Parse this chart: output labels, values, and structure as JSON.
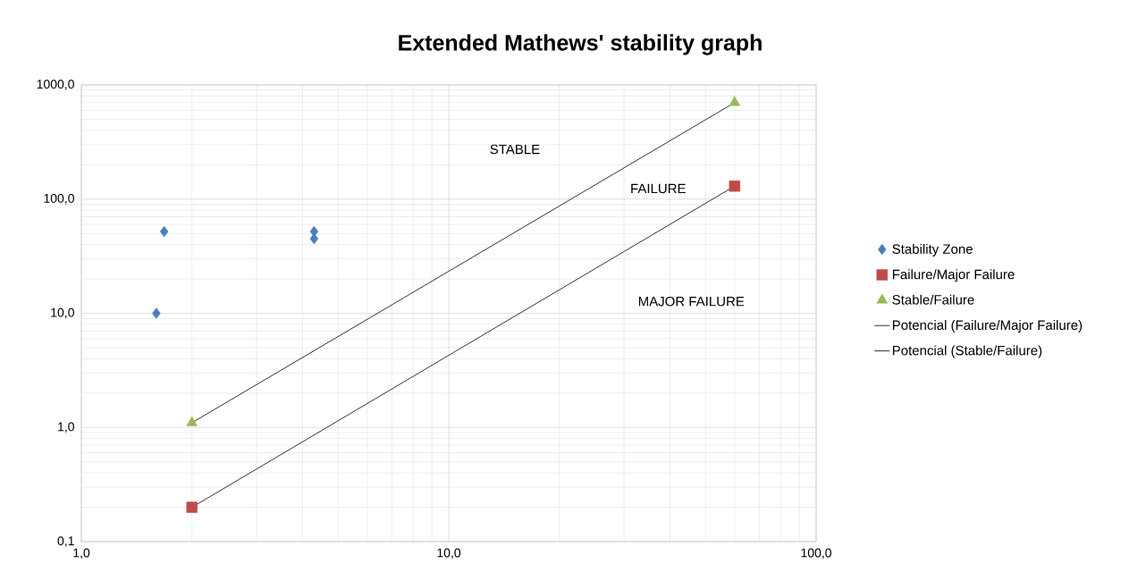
{
  "chart_data": {
    "type": "scatter",
    "title": "Extended Mathews' stability graph",
    "log": "xy",
    "grid": true,
    "legend": "right",
    "xlim": [
      1,
      100
    ],
    "xticks": [
      {
        "value": 1,
        "label": "1,0"
      },
      {
        "value": 10,
        "label": "10,0"
      },
      {
        "value": 100,
        "label": "100,0"
      }
    ],
    "ylim": [
      0.1,
      1000
    ],
    "yticks": [
      {
        "value": 0.1,
        "label": "0,1"
      },
      {
        "value": 1,
        "label": "1,0"
      },
      {
        "value": 10,
        "label": "10,0"
      },
      {
        "value": 100,
        "label": "100,0"
      },
      {
        "value": 1000,
        "label": "1000,0"
      }
    ],
    "annotations": [
      "STABLE",
      "FAILURE",
      "MAJOR FAILURE"
    ],
    "series": [
      {
        "name": "Stability Zone",
        "marker": "diamond",
        "color": "#4a7ebb",
        "x": [
          1.6,
          1.68,
          4.3,
          4.3
        ],
        "values": [
          10,
          52,
          52,
          45
        ]
      },
      {
        "name": "Failure/Major Failure",
        "marker": "square",
        "color": "#be4b48",
        "x": [
          2,
          60
        ],
        "values": [
          0.2,
          130
        ]
      },
      {
        "name": "Stable/Failure",
        "marker": "triangle",
        "color": "#98b954",
        "x": [
          2,
          60
        ],
        "values": [
          1.1,
          700
        ]
      },
      {
        "name": "Potencial (Failure/Major Failure)",
        "type": "line",
        "marker": "none",
        "line_style": "solid",
        "color": "#000000",
        "x": [
          2,
          60
        ],
        "values": [
          0.2,
          130
        ]
      },
      {
        "name": "Potencial (Stable/Failure)",
        "type": "line",
        "marker": "none",
        "line_style": "solid",
        "color": "#000000",
        "x": [
          2,
          60
        ],
        "values": [
          1.1,
          700
        ]
      }
    ]
  }
}
